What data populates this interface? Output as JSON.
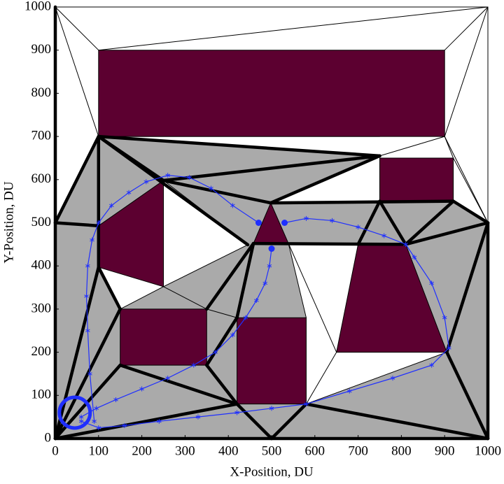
{
  "chart_data": {
    "type": "line",
    "xlabel": "X-Position, DU",
    "ylabel": "Y-Position, DU",
    "xlim": [
      0,
      1000
    ],
    "ylim": [
      0,
      1000
    ],
    "xticks": [
      0,
      100,
      200,
      300,
      400,
      500,
      600,
      700,
      800,
      900,
      1000
    ],
    "yticks": [
      0,
      100,
      200,
      300,
      400,
      500,
      600,
      700,
      800,
      900,
      1000
    ],
    "shaded_color": "#aaaaaa",
    "clear_color": "#ffffff",
    "obstacle_color": "#5c0030",
    "shaded_regions": [
      {
        "x": [
          0,
          1000,
          1000,
          920,
          750,
          498,
          750,
          100,
          0
        ],
        "y": [
          0,
          0,
          500,
          550,
          550,
          546,
          655,
          700,
          500
        ]
      }
    ],
    "clear_regions": [
      {
        "x": [
          250,
          445,
          250
        ],
        "y": [
          598,
          449,
          352
        ]
      },
      {
        "x": [
          100,
          250,
          150
        ],
        "y": [
          397,
          352,
          300
        ]
      },
      {
        "x": [
          539,
          700,
          650,
          580,
          580
        ],
        "y": [
          452,
          450,
          200,
          80,
          280
        ]
      },
      {
        "x": [
          650,
          905,
          580
        ],
        "y": [
          200,
          200,
          80
        ]
      }
    ],
    "obstacles": [
      {
        "x": [
          100,
          900,
          900,
          100
        ],
        "y": [
          700,
          700,
          900,
          900
        ]
      },
      {
        "x": [
          750,
          920,
          920,
          750
        ],
        "y": [
          550,
          550,
          650,
          650
        ]
      },
      {
        "x": [
          100,
          250,
          250,
          100
        ],
        "y": [
          493,
          598,
          352,
          397
        ]
      },
      {
        "x": [
          498,
          458,
          539
        ],
        "y": [
          546,
          452,
          452
        ]
      },
      {
        "x": [
          150,
          350,
          350,
          150
        ],
        "y": [
          170,
          170,
          300,
          300
        ]
      },
      {
        "x": [
          420,
          580,
          580,
          420
        ],
        "y": [
          80,
          80,
          280,
          280
        ]
      },
      {
        "x": [
          700,
          810,
          905,
          650
        ],
        "y": [
          450,
          450,
          200,
          200
        ]
      }
    ],
    "thin_edges": [
      [
        0,
        1000,
        1000,
        1000
      ],
      [
        0,
        1000,
        100,
        900
      ],
      [
        0,
        1000,
        100,
        700
      ],
      [
        0,
        1000,
        0,
        500
      ],
      [
        1000,
        1000,
        100,
        900
      ],
      [
        1000,
        1000,
        900,
        900
      ],
      [
        1000,
        1000,
        900,
        700
      ],
      [
        1000,
        1000,
        1000,
        500
      ],
      [
        900,
        700,
        750,
        655
      ],
      [
        900,
        700,
        920,
        650
      ],
      [
        900,
        700,
        1000,
        500
      ],
      [
        920,
        650,
        1000,
        500
      ],
      [
        250,
        352,
        350,
        300
      ],
      [
        250,
        352,
        150,
        300
      ],
      [
        250,
        352,
        445,
        449
      ],
      [
        250,
        598,
        445,
        449
      ],
      [
        539,
        452,
        580,
        280
      ],
      [
        580,
        80,
        650,
        200
      ],
      [
        580,
        80,
        905,
        200
      ],
      [
        350,
        300,
        420,
        280
      ],
      [
        539,
        452,
        650,
        200
      ],
      [
        100,
        700,
        750,
        700
      ]
    ],
    "thick_edges": [
      [
        100,
        700,
        750,
        655
      ],
      [
        100,
        700,
        0,
        500
      ],
      [
        100,
        700,
        100,
        493
      ],
      [
        100,
        700,
        250,
        598
      ],
      [
        100,
        700,
        445,
        449
      ],
      [
        250,
        598,
        750,
        655
      ],
      [
        250,
        598,
        498,
        546
      ],
      [
        498,
        546,
        750,
        655
      ],
      [
        498,
        546,
        920,
        550
      ],
      [
        920,
        550,
        1000,
        500
      ],
      [
        1000,
        500,
        1000,
        0
      ],
      [
        0,
        500,
        0,
        0
      ],
      [
        0,
        0,
        1000,
        0
      ],
      [
        0,
        500,
        100,
        493
      ],
      [
        0,
        0,
        100,
        397
      ],
      [
        0,
        0,
        150,
        300
      ],
      [
        0,
        0,
        150,
        170
      ],
      [
        0,
        0,
        420,
        80
      ],
      [
        150,
        170,
        420,
        80
      ],
      [
        350,
        170,
        420,
        80
      ],
      [
        350,
        300,
        458,
        452
      ],
      [
        350,
        170,
        420,
        280
      ],
      [
        420,
        80,
        500,
        0
      ],
      [
        500,
        0,
        580,
        80
      ],
      [
        580,
        80,
        1000,
        0
      ],
      [
        905,
        200,
        1000,
        0
      ],
      [
        905,
        200,
        1000,
        500
      ],
      [
        810,
        450,
        1000,
        500
      ],
      [
        810,
        450,
        920,
        550
      ],
      [
        750,
        550,
        810,
        450
      ],
      [
        700,
        450,
        750,
        550
      ],
      [
        458,
        452,
        810,
        450
      ],
      [
        458,
        452,
        420,
        280
      ],
      [
        100,
        493,
        100,
        397
      ],
      [
        100,
        397,
        150,
        300
      ],
      [
        0,
        500,
        0,
        1000
      ]
    ],
    "series": [
      {
        "color": "#1f2fff",
        "x": [
          90,
          80,
          75,
          72,
          75,
          85,
          100,
          130,
          170,
          210,
          260,
          310,
          360,
          410,
          470,
          null,
          500,
          495,
          485,
          465,
          440,
          410,
          370,
          320,
          260,
          200,
          140,
          95,
          60,
          null,
          60,
          100,
          160,
          240,
          330,
          420,
          500,
          580,
          680,
          780,
          870,
          910,
          900,
          870,
          830,
          810,
          760,
          700,
          640,
          580,
          530
        ],
        "y": [
          40,
          150,
          250,
          330,
          400,
          460,
          500,
          540,
          570,
          595,
          610,
          605,
          580,
          540,
          500,
          null,
          440,
          400,
          360,
          320,
          280,
          240,
          200,
          170,
          140,
          115,
          90,
          70,
          50,
          null,
          40,
          25,
          30,
          40,
          50,
          60,
          70,
          80,
          110,
          140,
          170,
          210,
          280,
          360,
          420,
          450,
          470,
          490,
          505,
          510,
          500
        ]
      }
    ],
    "endpoints": {
      "x": [
        470,
        500,
        530
      ],
      "y": [
        500,
        440,
        500
      ]
    },
    "start": {
      "x": 45,
      "y": 60
    }
  }
}
